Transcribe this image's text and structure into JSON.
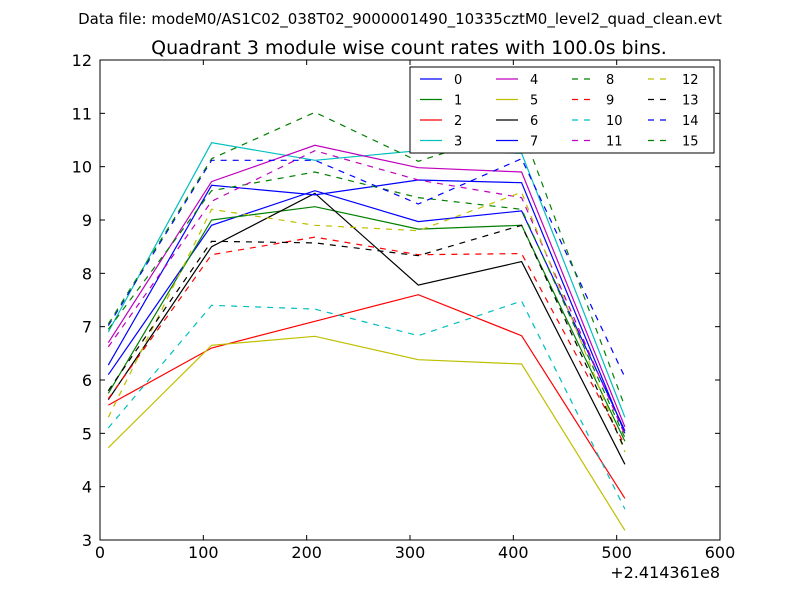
{
  "chart_data": {
    "type": "line",
    "suptitle": "Data file: modeM0/AS1C02_038T02_9000001490_10335cztM0_level2_quad_clean.evt",
    "title": "Quadrant 3 module wise count rates with 100.0s bins.",
    "xlabel": "",
    "ylabel": "",
    "x_offset_label": "+2.414361e8",
    "xlim": [
      0,
      600
    ],
    "ylim": [
      3,
      12
    ],
    "x_ticks": [
      "0",
      "100",
      "200",
      "300",
      "400",
      "500",
      "600"
    ],
    "y_ticks": [
      "3",
      "4",
      "5",
      "6",
      "7",
      "8",
      "9",
      "10",
      "11",
      "12"
    ],
    "grid": false,
    "legend_position": "top-right",
    "x": [
      8,
      108,
      208,
      308,
      408,
      508
    ],
    "series": [
      {
        "name": "0",
        "color": "#0000ff",
        "style": "solid",
        "values": [
          6.1,
          8.9,
          9.55,
          8.97,
          9.17,
          5.05
        ]
      },
      {
        "name": "1",
        "color": "#008000",
        "style": "solid",
        "values": [
          5.75,
          9.0,
          9.25,
          8.83,
          8.9,
          4.85
        ]
      },
      {
        "name": "2",
        "color": "#ff0000",
        "style": "solid",
        "values": [
          5.53,
          6.6,
          7.1,
          7.6,
          6.83,
          3.78
        ]
      },
      {
        "name": "3",
        "color": "#00bfbf",
        "style": "solid",
        "values": [
          6.9,
          10.45,
          10.12,
          10.3,
          10.25,
          5.3
        ]
      },
      {
        "name": "4",
        "color": "#bf00bf",
        "style": "solid",
        "values": [
          6.7,
          9.72,
          10.4,
          9.98,
          9.9,
          5.12
        ]
      },
      {
        "name": "5",
        "color": "#bfbf00",
        "style": "solid",
        "values": [
          4.73,
          6.65,
          6.82,
          6.38,
          6.3,
          3.18
        ]
      },
      {
        "name": "6",
        "color": "#000000",
        "style": "solid",
        "values": [
          5.63,
          8.5,
          9.5,
          7.78,
          8.22,
          4.42
        ]
      },
      {
        "name": "7",
        "color": "#0000ff",
        "style": "solid",
        "values": [
          6.28,
          9.65,
          9.47,
          9.75,
          9.7,
          5.0
        ]
      },
      {
        "name": "8",
        "color": "#008000",
        "style": "dashed",
        "values": [
          6.95,
          9.55,
          9.9,
          9.42,
          9.2,
          4.92
        ]
      },
      {
        "name": "9",
        "color": "#ff0000",
        "style": "dashed",
        "values": [
          5.65,
          8.35,
          8.68,
          8.35,
          8.37,
          4.78
        ]
      },
      {
        "name": "10",
        "color": "#00bfbf",
        "style": "dashed",
        "values": [
          5.1,
          7.4,
          7.33,
          6.83,
          7.48,
          3.58
        ]
      },
      {
        "name": "11",
        "color": "#bf00bf",
        "style": "dashed",
        "values": [
          6.62,
          9.35,
          10.3,
          9.75,
          9.42,
          4.97
        ]
      },
      {
        "name": "12",
        "color": "#bfbf00",
        "style": "dashed",
        "values": [
          5.3,
          9.2,
          8.9,
          8.8,
          9.52,
          4.65
        ]
      },
      {
        "name": "13",
        "color": "#000000",
        "style": "dashed",
        "values": [
          5.8,
          8.6,
          8.57,
          8.33,
          8.9,
          4.7
        ]
      },
      {
        "name": "14",
        "color": "#0000ff",
        "style": "dashed",
        "values": [
          7.02,
          10.12,
          10.12,
          9.3,
          10.15,
          6.05
        ]
      },
      {
        "name": "15",
        "color": "#008000",
        "style": "dashed",
        "values": [
          7.05,
          10.15,
          11.02,
          10.1,
          10.72,
          5.5
        ]
      }
    ]
  }
}
